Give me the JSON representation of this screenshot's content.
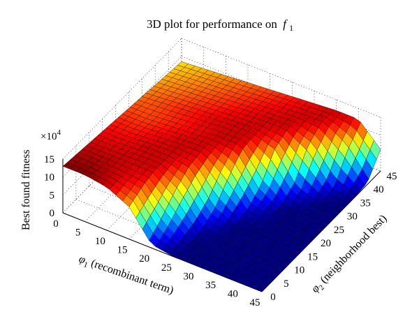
{
  "chart_data": {
    "type": "surface",
    "title": "3D plot for performance on",
    "title_symbol": "f",
    "title_subscript": "1",
    "zlabel": "Best found fitness",
    "zscale": "×10",
    "zscale_exp": "4",
    "xlabel_symbol": "φ",
    "xlabel_sub": "1",
    "xlabel_text": " (recombinant term)",
    "ylabel_symbol": "φ",
    "ylabel_sub": "2",
    "ylabel_text": " (neighborhood best)",
    "x_ticks": [
      "0",
      "5",
      "10",
      "15",
      "20",
      "25",
      "30",
      "35",
      "40",
      "45"
    ],
    "y_ticks": [
      "0",
      "5",
      "10",
      "15",
      "20",
      "25",
      "30",
      "35",
      "40",
      "45"
    ],
    "z_ticks": [
      "0",
      "5",
      "10",
      "15"
    ],
    "xlim": [
      0,
      45
    ],
    "ylim": [
      0,
      45
    ],
    "zlim": [
      0,
      15
    ],
    "colormap": "jet",
    "grid": true,
    "surface_samples": {
      "phi1": [
        0,
        5,
        10,
        15,
        20,
        25,
        30,
        35,
        40,
        45
      ],
      "phi2": [
        0,
        5,
        10,
        15,
        20,
        25,
        30,
        35,
        40,
        45
      ],
      "fitness_x1e4": [
        [
          13,
          12.5,
          12,
          11.5,
          11,
          10.5,
          10,
          9.5,
          9,
          8.5
        ],
        [
          13,
          12.5,
          12,
          11.5,
          11,
          10.5,
          10.5,
          10,
          9.5,
          9
        ],
        [
          12,
          12,
          12,
          12,
          11.5,
          11,
          11,
          10.5,
          10,
          9.5
        ],
        [
          9,
          11,
          12,
          12,
          12,
          11.5,
          11.5,
          11,
          10.5,
          10
        ],
        [
          1,
          4,
          8,
          11,
          12,
          12,
          12,
          11.5,
          11,
          10.5
        ],
        [
          0,
          0,
          0.5,
          3,
          8,
          12,
          12,
          12,
          11.5,
          11
        ],
        [
          0,
          0,
          0,
          0,
          1,
          4,
          10,
          12,
          12,
          11.5
        ],
        [
          0,
          0,
          0,
          0,
          0,
          0,
          2,
          9,
          12,
          12
        ],
        [
          0,
          0,
          0,
          0,
          0,
          0,
          0,
          1,
          8,
          12
        ],
        [
          0,
          0,
          0,
          0,
          0,
          0,
          0,
          0,
          0.5,
          6
        ]
      ]
    }
  }
}
